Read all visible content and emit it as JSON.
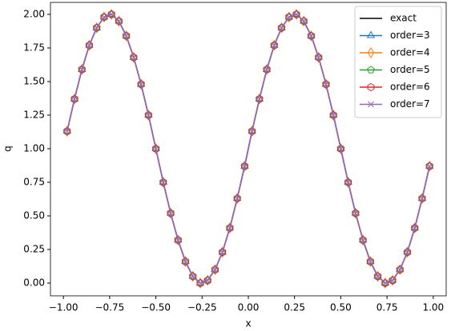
{
  "chart_data": {
    "type": "line",
    "xlabel": "x",
    "ylabel": "q",
    "x": [
      -0.98,
      -0.94,
      -0.9,
      -0.86,
      -0.82,
      -0.78,
      -0.74,
      -0.7,
      -0.66,
      -0.62,
      -0.58,
      -0.54,
      -0.5,
      -0.46,
      -0.42,
      -0.38,
      -0.34,
      -0.3,
      -0.26,
      -0.22,
      -0.18,
      -0.14,
      -0.1,
      -0.06,
      -0.02,
      0.02,
      0.06,
      0.1,
      0.14,
      0.18,
      0.22,
      0.26,
      0.3,
      0.34,
      0.38,
      0.42,
      0.46,
      0.5,
      0.54,
      0.58,
      0.62,
      0.66,
      0.7,
      0.74,
      0.78,
      0.82,
      0.86,
      0.9,
      0.94,
      0.98
    ],
    "series": [
      {
        "name": "exact",
        "color": "#000000",
        "marker": "none",
        "values": [
          1.13,
          1.37,
          1.59,
          1.77,
          1.9,
          1.98,
          2,
          1.95,
          1.84,
          1.68,
          1.48,
          1.25,
          1,
          0.75,
          0.52,
          0.32,
          0.16,
          0.05,
          0,
          0.02,
          0.1,
          0.23,
          0.41,
          0.63,
          0.87,
          1.13,
          1.37,
          1.59,
          1.77,
          1.9,
          1.98,
          2,
          1.95,
          1.84,
          1.68,
          1.48,
          1.25,
          1,
          0.75,
          0.52,
          0.32,
          0.16,
          0.05,
          0,
          0.02,
          0.1,
          0.23,
          0.41,
          0.63,
          0.87
        ]
      },
      {
        "name": "order=3",
        "color": "#1f77b4",
        "marker": "triangle",
        "values": [
          1.13,
          1.37,
          1.59,
          1.77,
          1.9,
          1.98,
          2,
          1.95,
          1.84,
          1.68,
          1.48,
          1.25,
          1,
          0.75,
          0.52,
          0.32,
          0.16,
          0.05,
          0,
          0.02,
          0.1,
          0.23,
          0.41,
          0.63,
          0.87,
          1.13,
          1.37,
          1.59,
          1.77,
          1.9,
          1.98,
          2,
          1.95,
          1.84,
          1.68,
          1.48,
          1.25,
          1,
          0.75,
          0.52,
          0.32,
          0.16,
          0.05,
          0,
          0.02,
          0.1,
          0.23,
          0.41,
          0.63,
          0.87
        ]
      },
      {
        "name": "order=4",
        "color": "#ff7f0e",
        "marker": "thin-diamond",
        "values": [
          1.13,
          1.37,
          1.59,
          1.77,
          1.9,
          1.98,
          2,
          1.95,
          1.84,
          1.68,
          1.48,
          1.25,
          1,
          0.75,
          0.52,
          0.32,
          0.16,
          0.05,
          0,
          0.02,
          0.1,
          0.23,
          0.41,
          0.63,
          0.87,
          1.13,
          1.37,
          1.59,
          1.77,
          1.9,
          1.98,
          2,
          1.95,
          1.84,
          1.68,
          1.48,
          1.25,
          1,
          0.75,
          0.52,
          0.32,
          0.16,
          0.05,
          0,
          0.02,
          0.1,
          0.23,
          0.41,
          0.63,
          0.87
        ]
      },
      {
        "name": "order=5",
        "color": "#2ca02c",
        "marker": "pentagon",
        "values": [
          1.13,
          1.37,
          1.59,
          1.77,
          1.9,
          1.98,
          2,
          1.95,
          1.84,
          1.68,
          1.48,
          1.25,
          1,
          0.75,
          0.52,
          0.32,
          0.16,
          0.05,
          0,
          0.02,
          0.1,
          0.23,
          0.41,
          0.63,
          0.87,
          1.13,
          1.37,
          1.59,
          1.77,
          1.9,
          1.98,
          2,
          1.95,
          1.84,
          1.68,
          1.48,
          1.25,
          1,
          0.75,
          0.52,
          0.32,
          0.16,
          0.05,
          0,
          0.02,
          0.1,
          0.23,
          0.41,
          0.63,
          0.87
        ]
      },
      {
        "name": "order=6",
        "color": "#d62728",
        "marker": "hexagon",
        "values": [
          1.13,
          1.37,
          1.59,
          1.77,
          1.9,
          1.98,
          2,
          1.95,
          1.84,
          1.68,
          1.48,
          1.25,
          1,
          0.75,
          0.52,
          0.32,
          0.16,
          0.05,
          0,
          0.02,
          0.1,
          0.23,
          0.41,
          0.63,
          0.87,
          1.13,
          1.37,
          1.59,
          1.77,
          1.9,
          1.98,
          2,
          1.95,
          1.84,
          1.68,
          1.48,
          1.25,
          1,
          0.75,
          0.52,
          0.32,
          0.16,
          0.05,
          0,
          0.02,
          0.1,
          0.23,
          0.41,
          0.63,
          0.87
        ]
      },
      {
        "name": "order=7",
        "color": "#9467bd",
        "marker": "x",
        "values": [
          1.13,
          1.37,
          1.59,
          1.77,
          1.9,
          1.98,
          2,
          1.95,
          1.84,
          1.68,
          1.48,
          1.25,
          1,
          0.75,
          0.52,
          0.32,
          0.16,
          0.05,
          0,
          0.02,
          0.1,
          0.23,
          0.41,
          0.63,
          0.87,
          1.13,
          1.37,
          1.59,
          1.77,
          1.9,
          1.98,
          2,
          1.95,
          1.84,
          1.68,
          1.48,
          1.25,
          1,
          0.75,
          0.52,
          0.32,
          0.16,
          0.05,
          0,
          0.02,
          0.1,
          0.23,
          0.41,
          0.63,
          0.87
        ]
      }
    ],
    "xlim": [
      -1.07,
      1.07
    ],
    "xticks": [
      {
        "value": -1,
        "label": "−1.00"
      },
      {
        "value": -0.75,
        "label": "−0.75"
      },
      {
        "value": -0.5,
        "label": "−0.50"
      },
      {
        "value": -0.25,
        "label": "−0.25"
      },
      {
        "value": 0,
        "label": "0.00"
      },
      {
        "value": 0.25,
        "label": "0.25"
      },
      {
        "value": 0.5,
        "label": "0.50"
      },
      {
        "value": 0.75,
        "label": "0.75"
      },
      {
        "value": 1,
        "label": "1.00"
      }
    ],
    "ylim": [
      -0.095,
      2.089
    ],
    "yticks": [
      {
        "value": 0,
        "label": "0.00"
      },
      {
        "value": 0.25,
        "label": "0.25"
      },
      {
        "value": 0.5,
        "label": "0.50"
      },
      {
        "value": 0.75,
        "label": "0.75"
      },
      {
        "value": 1,
        "label": "1.00"
      },
      {
        "value": 1.25,
        "label": "1.25"
      },
      {
        "value": 1.5,
        "label": "1.50"
      },
      {
        "value": 1.75,
        "label": "1.75"
      },
      {
        "value": 2,
        "label": "2.00"
      }
    ],
    "grid": false,
    "legend": "upper right"
  }
}
